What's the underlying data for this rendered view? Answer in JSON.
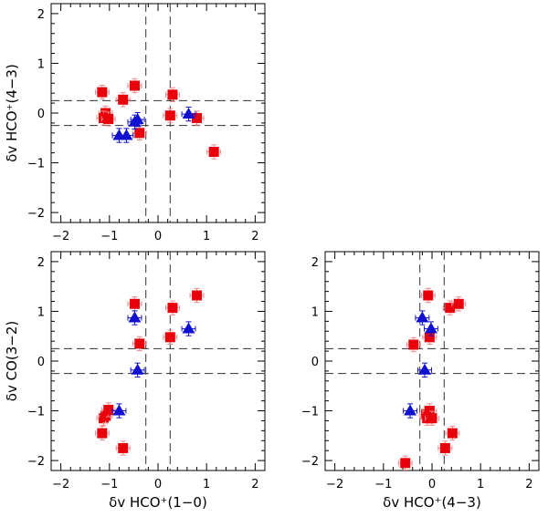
{
  "colors": {
    "square": "#e8000b",
    "square_err": "#f08a8a",
    "triangle": "#1010d0",
    "triangle_err": "#1010d0",
    "frame": "#000000"
  },
  "chart_data": [
    {
      "id": "top-left",
      "type": "scatter",
      "title": "",
      "xlabel": "",
      "ylabel": "δv HCO⁺(4−3)",
      "xlim": [
        -2.2,
        2.2
      ],
      "ylim": [
        -2.2,
        2.2
      ],
      "xticks": [
        "−2",
        "−1",
        "0",
        "1",
        "2"
      ],
      "yticks": [
        "−2",
        "−1",
        "0",
        "1",
        "2"
      ],
      "dashed_lines": {
        "x": [
          -0.25,
          0.25
        ],
        "y": [
          -0.25,
          0.25
        ]
      },
      "series": [
        {
          "name": "squares",
          "marker": "square",
          "points": [
            {
              "x": -1.15,
              "y": 0.42
            },
            {
              "x": -1.08,
              "y": 0.0
            },
            {
              "x": -1.12,
              "y": -0.1
            },
            {
              "x": -1.02,
              "y": -0.12
            },
            {
              "x": -0.72,
              "y": 0.27
            },
            {
              "x": -0.48,
              "y": 0.55
            },
            {
              "x": -0.38,
              "y": -0.4
            },
            {
              "x": 0.25,
              "y": -0.05
            },
            {
              "x": 0.3,
              "y": 0.37
            },
            {
              "x": 0.8,
              "y": -0.1
            },
            {
              "x": 1.15,
              "y": -0.78
            }
          ]
        },
        {
          "name": "triangles",
          "marker": "triangle",
          "points": [
            {
              "x": -0.8,
              "y": -0.45
            },
            {
              "x": -0.65,
              "y": -0.45
            },
            {
              "x": -0.48,
              "y": -0.18
            },
            {
              "x": -0.42,
              "y": -0.13
            },
            {
              "x": 0.63,
              "y": -0.02
            }
          ]
        }
      ]
    },
    {
      "id": "bottom-left",
      "type": "scatter",
      "title": "",
      "xlabel": "δv HCO⁺(1−0)",
      "ylabel": "δv CO(3−2)",
      "xlim": [
        -2.2,
        2.2
      ],
      "ylim": [
        -2.2,
        2.2
      ],
      "xticks": [
        "−2",
        "−1",
        "0",
        "1",
        "2"
      ],
      "yticks": [
        "−2",
        "−1",
        "0",
        "1",
        "2"
      ],
      "dashed_lines": {
        "x": [
          -0.25,
          0.25
        ],
        "y": [
          -0.25,
          0.25
        ]
      },
      "series": [
        {
          "name": "squares",
          "marker": "square",
          "points": [
            {
              "x": -1.15,
              "y": -1.45
            },
            {
              "x": -1.12,
              "y": -1.15
            },
            {
              "x": -1.08,
              "y": -1.1
            },
            {
              "x": -1.02,
              "y": -0.98
            },
            {
              "x": -0.72,
              "y": -1.75
            },
            {
              "x": -0.48,
              "y": 1.15
            },
            {
              "x": -0.38,
              "y": 0.35
            },
            {
              "x": 0.25,
              "y": 0.48
            },
            {
              "x": 0.3,
              "y": 1.07
            },
            {
              "x": 0.8,
              "y": 1.32
            }
          ]
        },
        {
          "name": "triangles",
          "marker": "triangle",
          "points": [
            {
              "x": -0.8,
              "y": -1.0
            },
            {
              "x": -0.48,
              "y": 0.87
            },
            {
              "x": -0.42,
              "y": -0.18
            },
            {
              "x": 0.63,
              "y": 0.65
            }
          ]
        }
      ]
    },
    {
      "id": "bottom-right",
      "type": "scatter",
      "title": "",
      "xlabel": "δv HCO⁺(4−3)",
      "ylabel": "",
      "xlim": [
        -2.2,
        2.2
      ],
      "ylim": [
        -2.2,
        2.2
      ],
      "xticks": [
        "−2",
        "−1",
        "0",
        "1",
        "2"
      ],
      "yticks": [
        "−2",
        "−1",
        "0",
        "1",
        "2"
      ],
      "dashed_lines": {
        "x": [
          -0.25,
          0.25
        ],
        "y": [
          -0.25,
          0.25
        ]
      },
      "series": [
        {
          "name": "squares",
          "marker": "square",
          "points": [
            {
              "x": -0.55,
              "y": -2.05
            },
            {
              "x": -0.38,
              "y": 0.33
            },
            {
              "x": -0.12,
              "y": -1.07
            },
            {
              "x": -0.1,
              "y": -1.15
            },
            {
              "x": -0.08,
              "y": 1.32
            },
            {
              "x": -0.05,
              "y": -1.0
            },
            {
              "x": 0.0,
              "y": -1.15
            },
            {
              "x": -0.05,
              "y": 0.48
            },
            {
              "x": 0.27,
              "y": -1.75
            },
            {
              "x": 0.37,
              "y": 1.07
            },
            {
              "x": 0.42,
              "y": -1.45
            },
            {
              "x": 0.55,
              "y": 1.15
            }
          ]
        },
        {
          "name": "triangles",
          "marker": "triangle",
          "points": [
            {
              "x": -0.45,
              "y": -1.0
            },
            {
              "x": -0.2,
              "y": 0.87
            },
            {
              "x": -0.15,
              "y": -0.18
            },
            {
              "x": -0.02,
              "y": 0.65
            }
          ]
        }
      ]
    }
  ]
}
